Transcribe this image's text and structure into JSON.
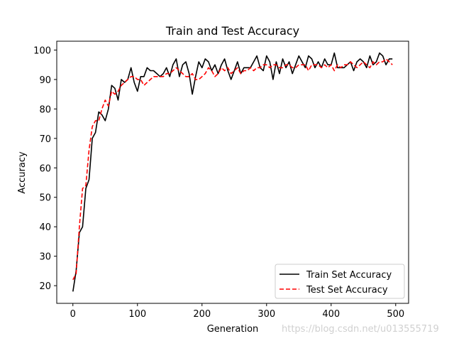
{
  "chart_data": {
    "type": "line",
    "title": "Train and Test Accuracy",
    "xlabel": "Generation",
    "ylabel": "Accuracy",
    "xlim": [
      -25,
      520
    ],
    "ylim": [
      14,
      103
    ],
    "xticks": [
      0,
      100,
      200,
      300,
      400,
      500
    ],
    "yticks": [
      20,
      30,
      40,
      50,
      60,
      70,
      80,
      90,
      100
    ],
    "grid": false,
    "legend": "lower-right",
    "series": [
      {
        "name": "Train Set Accuracy",
        "color": "#000000",
        "style": "solid",
        "x": [
          0,
          5,
          10,
          15,
          20,
          25,
          30,
          35,
          40,
          45,
          50,
          55,
          60,
          65,
          70,
          75,
          80,
          85,
          90,
          95,
          100,
          105,
          110,
          115,
          120,
          125,
          130,
          135,
          140,
          145,
          150,
          155,
          160,
          165,
          170,
          175,
          180,
          185,
          190,
          195,
          200,
          205,
          210,
          215,
          220,
          225,
          230,
          235,
          240,
          245,
          250,
          255,
          260,
          265,
          270,
          275,
          280,
          285,
          290,
          295,
          300,
          305,
          310,
          315,
          320,
          325,
          330,
          335,
          340,
          345,
          350,
          355,
          360,
          365,
          370,
          375,
          380,
          385,
          390,
          395,
          400,
          405,
          410,
          415,
          420,
          425,
          430,
          435,
          440,
          445,
          450,
          455,
          460,
          465,
          470,
          475,
          480,
          485,
          490,
          495
        ],
        "y": [
          18,
          25,
          38,
          40,
          53,
          56,
          70,
          72,
          79,
          78,
          76,
          80,
          88,
          87,
          83,
          90,
          89,
          90,
          94,
          89,
          86,
          91,
          91,
          94,
          93,
          93,
          92,
          91,
          92,
          94,
          91,
          95,
          97,
          91,
          95,
          96,
          92,
          85,
          91,
          96,
          94,
          97,
          96,
          93,
          95,
          92,
          95,
          97,
          93,
          90,
          93,
          96,
          92,
          94,
          94,
          94,
          96,
          98,
          94,
          93,
          98,
          96,
          90,
          96,
          92,
          97,
          94,
          96,
          92,
          95,
          98,
          96,
          94,
          98,
          97,
          94,
          96,
          94,
          97,
          95,
          95,
          99,
          94,
          94,
          94,
          95,
          96,
          93,
          96,
          97,
          96,
          94,
          98,
          95,
          96,
          99,
          98,
          95,
          97,
          97
        ]
      },
      {
        "name": "Test Set Accuracy",
        "color": "#ff0000",
        "style": "dashed",
        "x": [
          0,
          5,
          10,
          15,
          20,
          25,
          30,
          35,
          40,
          45,
          50,
          55,
          60,
          65,
          70,
          75,
          80,
          85,
          90,
          95,
          100,
          105,
          110,
          115,
          120,
          125,
          130,
          135,
          140,
          145,
          150,
          155,
          160,
          165,
          170,
          175,
          180,
          185,
          190,
          195,
          200,
          205,
          210,
          215,
          220,
          225,
          230,
          235,
          240,
          245,
          250,
          255,
          260,
          265,
          270,
          275,
          280,
          285,
          290,
          295,
          300,
          305,
          310,
          315,
          320,
          325,
          330,
          335,
          340,
          345,
          350,
          355,
          360,
          365,
          370,
          375,
          380,
          385,
          390,
          395,
          400,
          405,
          410,
          415,
          420,
          425,
          430,
          435,
          440,
          445,
          450,
          455,
          460,
          465,
          470,
          475,
          480,
          485,
          490,
          495
        ],
        "y": [
          22,
          24,
          40,
          53,
          54,
          66,
          74,
          76,
          76,
          80,
          83,
          81,
          86,
          85,
          86,
          88,
          89,
          90,
          91,
          91,
          90,
          90,
          88,
          89,
          90,
          91,
          91,
          91,
          91,
          92,
          92,
          93,
          94,
          93,
          92,
          91,
          91,
          92,
          90,
          90,
          91,
          92,
          94,
          93,
          91,
          92,
          94,
          93,
          94,
          92,
          93,
          94,
          92,
          93,
          93,
          94,
          93,
          94,
          94,
          95,
          95,
          94,
          95,
          95,
          94,
          94,
          95,
          95,
          94,
          94,
          95,
          95,
          95,
          93,
          95,
          95,
          95,
          94,
          95,
          94,
          95,
          93,
          95,
          94,
          95,
          95,
          96,
          95,
          94,
          95,
          96,
          95,
          94,
          96,
          95,
          96,
          96,
          97,
          96,
          95
        ]
      }
    ]
  },
  "watermark": "https://blog.csdn.net/u013555719"
}
